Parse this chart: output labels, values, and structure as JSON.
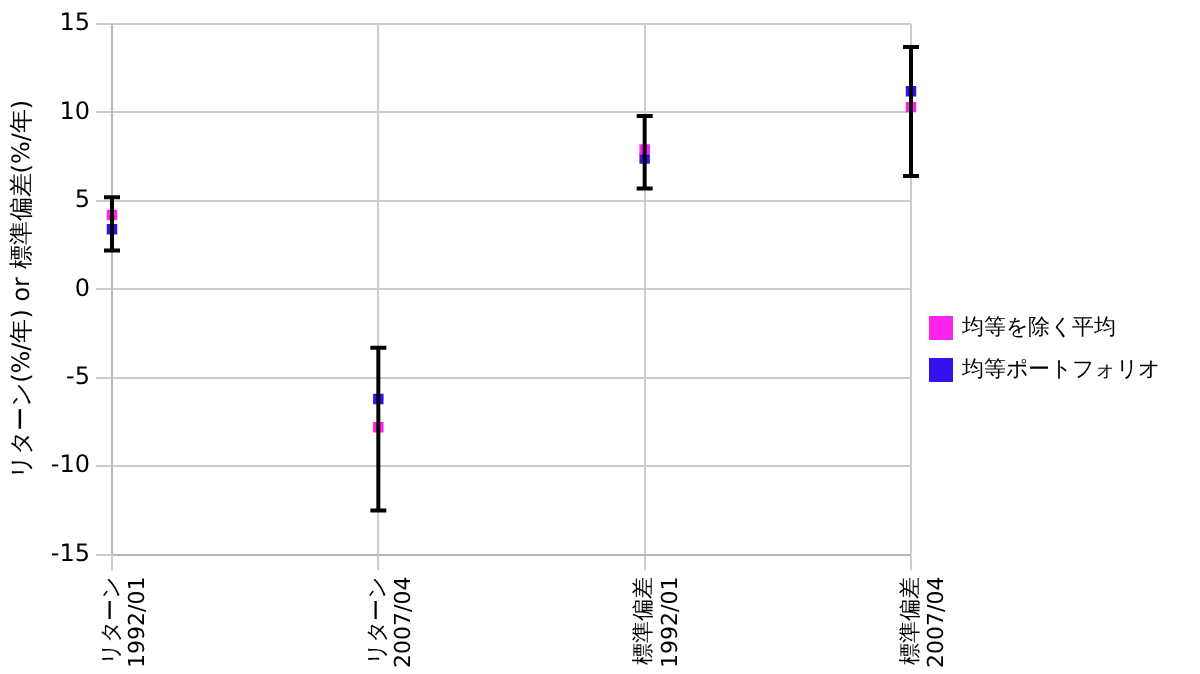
{
  "chart_data": {
    "type": "scatter",
    "ylabel": "リターン(%/年) or 標準偏差(%/年)",
    "categories": [
      "リターン\n1992/01",
      "リターン\n2007/04",
      "標準偏差\n1992/01",
      "標準偏差\n2007/04"
    ],
    "series": [
      {
        "name": "均等ポートフォリオ",
        "color": "#3311ee",
        "values": [
          3.4,
          -6.2,
          7.4,
          11.2
        ],
        "errors": [
          [
            2.2,
            5.2
          ],
          [
            -12.5,
            -3.3
          ],
          [
            5.7,
            9.8
          ],
          [
            6.4,
            13.7
          ]
        ]
      },
      {
        "name": "均等を除く平均",
        "color": "#ff22ee",
        "values": [
          4.2,
          -7.8,
          7.9,
          10.3
        ]
      }
    ],
    "ylim": [
      -15,
      15
    ],
    "yticks": [
      -15,
      -10,
      -5,
      0,
      5,
      10,
      15
    ],
    "grid": true,
    "legend": "right",
    "marker": "square"
  }
}
